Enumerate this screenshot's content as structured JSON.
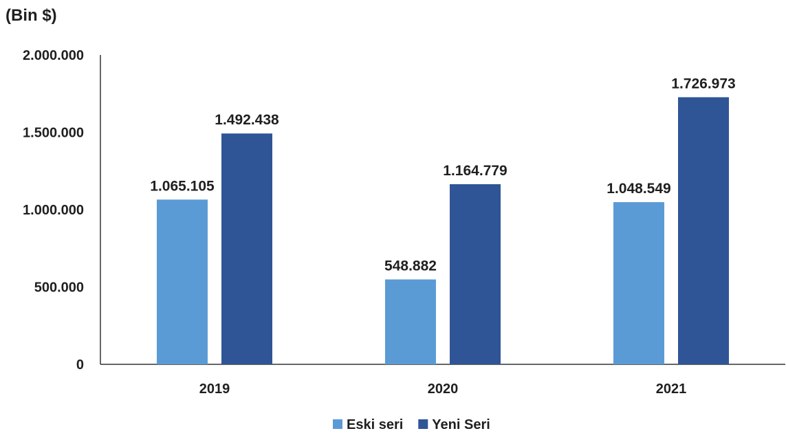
{
  "chart_data": {
    "type": "bar",
    "unit_label": "(Bin $)",
    "categories": [
      "2019",
      "2020",
      "2021"
    ],
    "series": [
      {
        "name": "Eski seri",
        "values": [
          1065105,
          548882,
          1048549
        ],
        "labels": [
          "1.065.105",
          "548.882",
          "1.048.549"
        ],
        "color": "#5b9bd5"
      },
      {
        "name": "Yeni Seri",
        "values": [
          1492438,
          1164779,
          1726973
        ],
        "labels": [
          "1.492.438",
          "1.164.779",
          "1.726.973"
        ],
        "color": "#2f5597"
      }
    ],
    "ylim": [
      0,
      2000000
    ],
    "yticks": [
      0,
      500000,
      1000000,
      1500000,
      2000000
    ],
    "ytick_labels": [
      "0",
      "500.000",
      "1.000.000",
      "1.500.000",
      "2.000.000"
    ],
    "legend_position": "bottom",
    "grid": false
  }
}
